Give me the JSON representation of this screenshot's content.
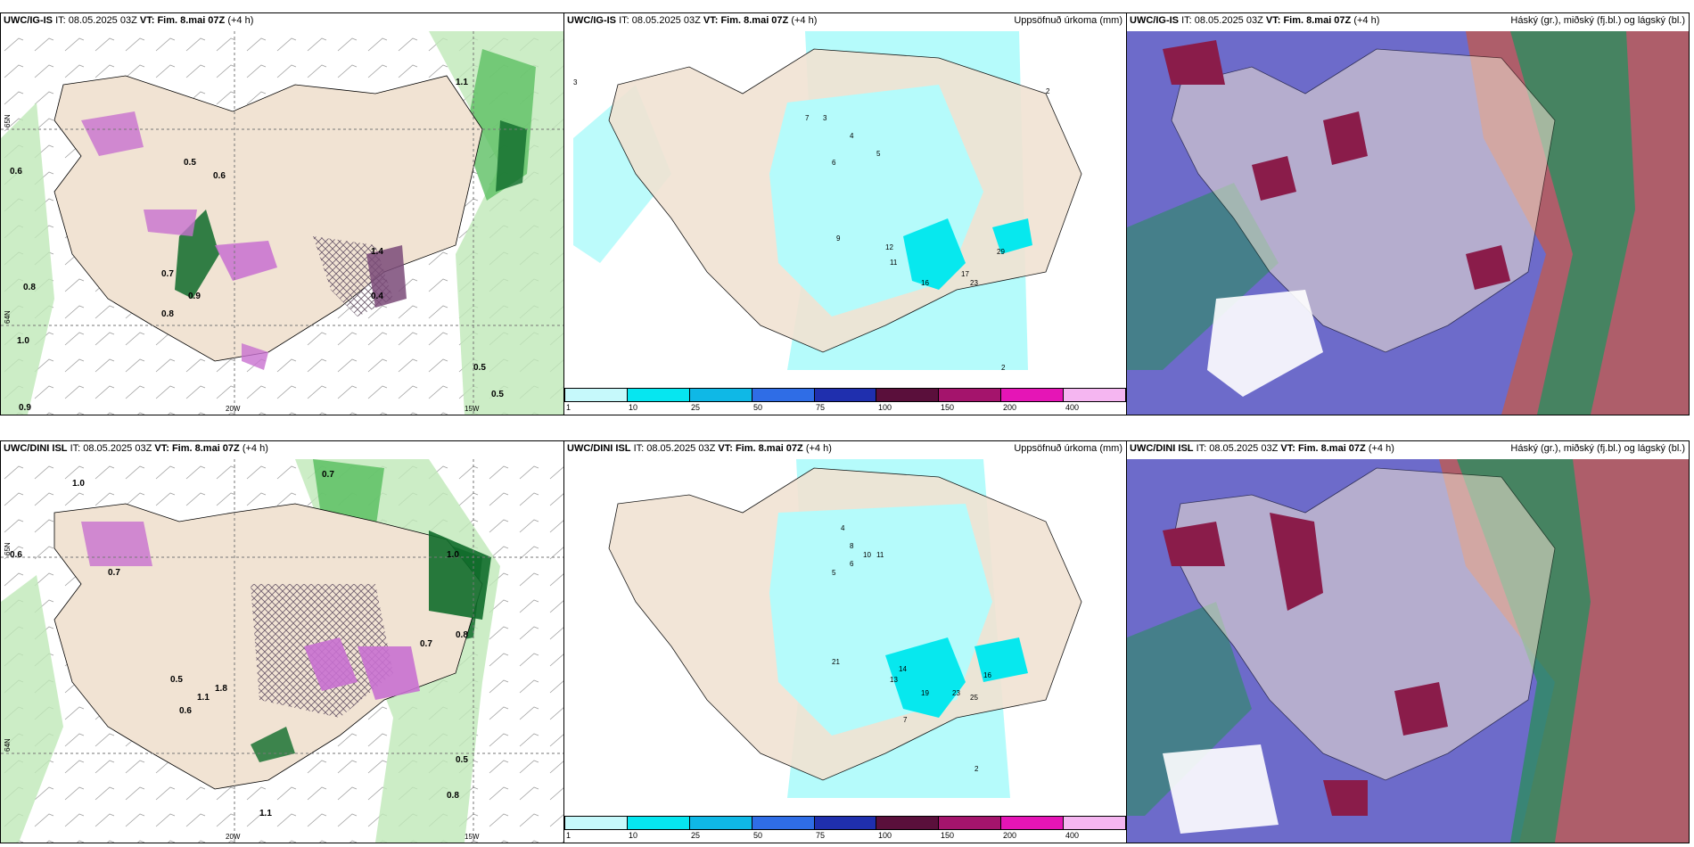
{
  "rows": [
    {
      "model": "UWC/IG-IS",
      "panels": [
        {
          "model": "UWC/IG-IS",
          "it_label": "IT:",
          "it": "08.05.2025 03Z",
          "vt_label": "VT:",
          "vt": "Fim. 8.mai 07Z",
          "lead": "(+4 h)",
          "right_title": ""
        },
        {
          "model": "UWC/IG-IS",
          "it_label": "IT:",
          "it": "08.05.2025 03Z",
          "vt_label": "VT:",
          "vt": "Fim. 8.mai 07Z",
          "lead": "(+4 h)",
          "right_title": "Uppsöfnuð úrkoma (mm)"
        },
        {
          "model": "UWC/IG-IS",
          "it_label": "IT:",
          "it": "08.05.2025 03Z",
          "vt_label": "VT:",
          "vt": "Fim. 8.mai 07Z",
          "lead": "(+4 h)",
          "right_title": "Háský (gr.), miðský (fj.bl.) og lágský (bl.)"
        }
      ]
    },
    {
      "model": "UWC/DINI ISL",
      "panels": [
        {
          "model": "UWC/DINI ISL",
          "it_label": "IT:",
          "it": "08.05.2025 03Z",
          "vt_label": "VT:",
          "vt": "Fim. 8.mai 07Z",
          "lead": "(+4 h)",
          "right_title": ""
        },
        {
          "model": "UWC/DINI ISL",
          "it_label": "IT:",
          "it": "08.05.2025 03Z",
          "vt_label": "VT:",
          "vt": "Fim. 8.mai 07Z",
          "lead": "(+4 h)",
          "right_title": "Uppsöfnuð úrkoma (mm)"
        },
        {
          "model": "UWC/DINI ISL",
          "it_label": "IT:",
          "it": "08.05.2025 03Z",
          "vt_label": "VT:",
          "vt": "Fim. 8.mai 07Z",
          "lead": "(+4 h)",
          "right_title": "Háský (gr.), miðský (fj.bl.) og lágský (bl.)"
        }
      ]
    }
  ],
  "map_labels": {
    "lon_20": "20W",
    "lon_15": "15W",
    "lat_65": "65N",
    "lat_64": "64N"
  },
  "precip_labels": {
    "top": [
      "3",
      "4",
      "5",
      "6",
      "7",
      "9",
      "12",
      "11",
      "16",
      "17",
      "23",
      "29",
      "3",
      "2",
      "2"
    ],
    "bottom": [
      "4",
      "8",
      "10",
      "11",
      "6",
      "5",
      "21",
      "14",
      "13",
      "19",
      "23",
      "25",
      "16",
      "7",
      "2"
    ]
  },
  "wind_labels": {
    "top": [
      "1.0",
      "0.6",
      "0.8",
      "0.7",
      "0.5",
      "0.6",
      "0.9",
      "0.8",
      "1.4",
      "0.4",
      "0.5",
      "1.1",
      "0.5",
      "0.9"
    ],
    "bottom": [
      "1.0",
      "0.6",
      "0.7",
      "0.5",
      "1.1",
      "1.8",
      "0.6",
      "0.8",
      "0.7",
      "1.0",
      "0.5",
      "0.8",
      "1.1",
      "0.7"
    ]
  },
  "legend": {
    "labels": [
      "1",
      "10",
      "25",
      "50",
      "75",
      "100",
      "150",
      "200",
      "400"
    ],
    "colors": [
      "#c6f9fb",
      "#06e6f0",
      "#0fb8e6",
      "#2f6de6",
      "#1f2fae",
      "#5a0f3b",
      "#a4146c",
      "#e515b6",
      "#f5b6f1"
    ]
  },
  "colors": {
    "land": "#f1e3d3",
    "precip_light": "#b5fbfb",
    "precip_mid": "#07e8ee",
    "precip_dark": "#0fb7db",
    "green_light": "#bfe8b8",
    "green_mid": "#5cbf63",
    "green_dark": "#0f6b2a",
    "purple": "#c870d0",
    "mauve": "#7a4a78",
    "cloud_blue": "#5d5bc4",
    "cloud_dark": "#8a1c4a",
    "cloud_green": "#2c8c5f",
    "cloud_red": "#c45a4a"
  }
}
